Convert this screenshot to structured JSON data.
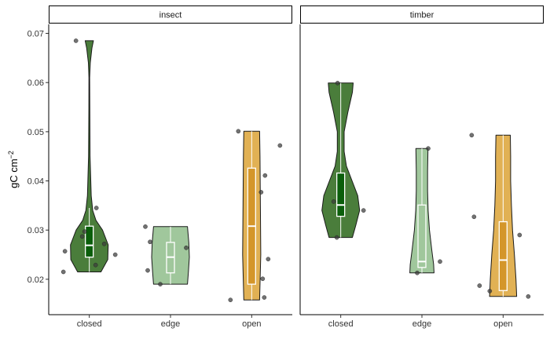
{
  "chart_data": {
    "type": "violin",
    "ylabel": "gC cm",
    "ylabel_sup": "−2",
    "ylim": [
      0.0128,
      0.072
    ],
    "yticks": [
      0.02,
      0.03,
      0.04,
      0.05,
      0.06,
      0.07
    ],
    "ytick_labels": [
      "0.02",
      "0.03",
      "0.04",
      "0.05",
      "0.06",
      "0.07"
    ],
    "categories": [
      "closed",
      "edge",
      "open"
    ],
    "colors": {
      "closed": {
        "fill": "#4a7d3b",
        "box": "#0b5e0b"
      },
      "edge": {
        "fill": "#a0c79c",
        "box": "#a0c79c"
      },
      "open": {
        "fill": "#e1b154",
        "box": "#d4962a"
      }
    },
    "facets": [
      {
        "label": "insect",
        "groups": [
          {
            "category": "closed",
            "points": [
              0.0685,
              0.0345,
              0.0297,
              0.0287,
              0.0272,
              0.0257,
              0.025,
              0.0229,
              0.0215
            ],
            "box": {
              "q1": 0.0245,
              "median": 0.0269,
              "q3": 0.0308,
              "whisker_low": 0.0215,
              "whisker_high": 0.0345
            },
            "density": [
              [
                0.0215,
                0.62
              ],
              [
                0.024,
                0.98
              ],
              [
                0.027,
                1.0
              ],
              [
                0.03,
                0.7
              ],
              [
                0.032,
                0.35
              ],
              [
                0.034,
                0.18
              ],
              [
                0.037,
                0.1
              ],
              [
                0.045,
                0.04
              ],
              [
                0.055,
                0.025
              ],
              [
                0.061,
                0.02
              ],
              [
                0.064,
                0.05
              ],
              [
                0.067,
                0.14
              ],
              [
                0.0685,
                0.22
              ]
            ]
          },
          {
            "category": "edge",
            "points": [
              0.0307,
              0.0276,
              0.0264,
              0.0218,
              0.019
            ],
            "box": {
              "q1": 0.0213,
              "median": 0.0245,
              "q3": 0.0275,
              "whisker_low": 0.019,
              "whisker_high": 0.0307
            },
            "density": [
              [
                0.019,
                0.9
              ],
              [
                0.0215,
                0.95
              ],
              [
                0.0245,
                1.0
              ],
              [
                0.0275,
                0.97
              ],
              [
                0.0307,
                0.9
              ]
            ]
          },
          {
            "category": "open",
            "points": [
              0.0501,
              0.0472,
              0.0411,
              0.0377,
              0.0241,
              0.0201,
              0.0163,
              0.0158
            ],
            "box": {
              "q1": 0.019,
              "median": 0.0308,
              "q3": 0.0426,
              "whisker_low": 0.0158,
              "whisker_high": 0.0501
            },
            "density": [
              [
                0.0158,
                0.42
              ],
              [
                0.025,
                0.48
              ],
              [
                0.035,
                0.46
              ],
              [
                0.045,
                0.44
              ],
              [
                0.0501,
                0.42
              ]
            ]
          }
        ]
      },
      {
        "label": "timber",
        "groups": [
          {
            "category": "closed",
            "points": [
              0.0599,
              0.0358,
              0.034,
              0.0285
            ],
            "box": {
              "q1": 0.0328,
              "median": 0.0351,
              "q3": 0.0416,
              "whisker_low": 0.0285,
              "whisker_high": 0.0599
            },
            "density": [
              [
                0.0285,
                0.62
              ],
              [
                0.031,
                0.8
              ],
              [
                0.034,
                1.0
              ],
              [
                0.037,
                0.9
              ],
              [
                0.04,
                0.6
              ],
              [
                0.043,
                0.3
              ],
              [
                0.046,
                0.18
              ],
              [
                0.05,
                0.18
              ],
              [
                0.054,
                0.38
              ],
              [
                0.058,
                0.62
              ],
              [
                0.0599,
                0.66
              ]
            ]
          },
          {
            "category": "edge",
            "points": [
              0.0466,
              0.0236,
              0.0213
            ],
            "box": {
              "q1": 0.0224,
              "median": 0.0236,
              "q3": 0.0351,
              "whisker_low": 0.0213,
              "whisker_high": 0.0466
            },
            "density": [
              [
                0.0213,
                0.64
              ],
              [
                0.023,
                0.62
              ],
              [
                0.026,
                0.52
              ],
              [
                0.03,
                0.4
              ],
              [
                0.034,
                0.33
              ],
              [
                0.038,
                0.3
              ],
              [
                0.042,
                0.3
              ],
              [
                0.0466,
                0.32
              ]
            ]
          },
          {
            "category": "open",
            "points": [
              0.0493,
              0.0327,
              0.029,
              0.0187,
              0.0176,
              0.0165
            ],
            "box": {
              "q1": 0.0177,
              "median": 0.0239,
              "q3": 0.0317,
              "whisker_low": 0.0165,
              "whisker_high": 0.0493
            },
            "density": [
              [
                0.0165,
                0.72
              ],
              [
                0.02,
                0.68
              ],
              [
                0.025,
                0.6
              ],
              [
                0.03,
                0.5
              ],
              [
                0.035,
                0.44
              ],
              [
                0.04,
                0.4
              ],
              [
                0.045,
                0.4
              ],
              [
                0.0493,
                0.38
              ]
            ]
          }
        ]
      }
    ]
  }
}
